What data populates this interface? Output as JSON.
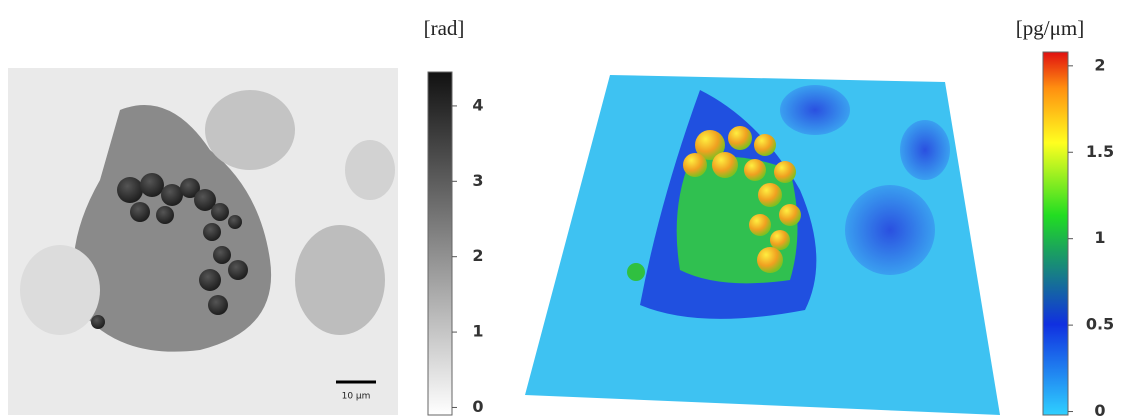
{
  "left_panel": {
    "unit": "[rad]",
    "colorbar_ticks": [
      0,
      1,
      2,
      3,
      4
    ],
    "colorbar_range": [
      -0.1,
      4.45
    ],
    "scale_bar": "10 μm"
  },
  "right_panel": {
    "unit": "[pg/μm]",
    "colorbar_ticks": [
      0,
      0.5,
      1,
      1.5,
      2
    ],
    "colorbar_range": [
      -0.02,
      2.08
    ]
  }
}
